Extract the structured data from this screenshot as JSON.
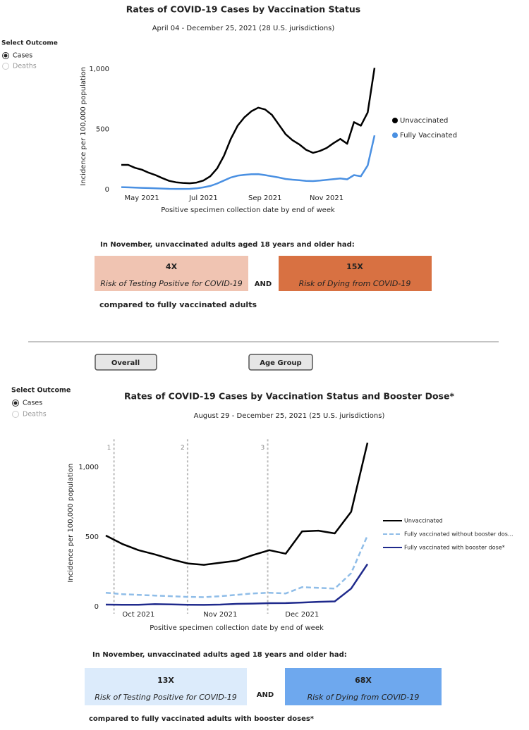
{
  "chart_data": [
    {
      "type": "line",
      "title": "Rates of COVID-19 Cases by Vaccination Status",
      "subtitle": "April 04 - December 25, 2021 (28 U.S. jurisdictions)",
      "y_label": "Incidence per 100,000 population",
      "x_label": "Positive specimen collection date by end of week",
      "categories": [
        null,
        null,
        null,
        "May 2021",
        null,
        null,
        null,
        null,
        null,
        null,
        null,
        null,
        "Jul 2021",
        null,
        null,
        null,
        null,
        null,
        null,
        null,
        null,
        "Sep 2021",
        null,
        null,
        null,
        null,
        null,
        null,
        null,
        null,
        "Nov 2021",
        null,
        null,
        null,
        null,
        null,
        null,
        null
      ],
      "series": [
        {
          "name": "Unvaccinated",
          "color": "#000000",
          "values": [
            205,
            205,
            180,
            165,
            140,
            120,
            95,
            72,
            60,
            55,
            52,
            58,
            75,
            110,
            175,
            280,
            420,
            530,
            600,
            650,
            680,
            665,
            620,
            540,
            460,
            410,
            375,
            330,
            305,
            320,
            345,
            385,
            420,
            380,
            560,
            530,
            640,
            1010
          ]
        },
        {
          "name": "Fully Vaccinated",
          "color": "#4a90e2",
          "values": [
            20,
            18,
            16,
            14,
            12,
            10,
            8,
            6,
            5,
            5,
            6,
            10,
            18,
            30,
            50,
            75,
            100,
            115,
            122,
            127,
            128,
            120,
            110,
            100,
            88,
            82,
            78,
            72,
            70,
            74,
            80,
            86,
            92,
            85,
            120,
            110,
            200,
            450
          ]
        }
      ],
      "ylim": [
        0,
        1050
      ],
      "yticks": [
        0,
        500,
        {
          "value": 1000,
          "label": "1,000"
        }
      ],
      "legend": "right"
    },
    {
      "type": "line",
      "title": "Rates of COVID-19 Cases by Vaccination Status and Booster Dose*",
      "subtitle": "August 29 - December 25, 2021 (25 U.S. jurisdictions)",
      "y_label": "Incidence per 100,000 population",
      "x_label": "Positive specimen collection date by end of week",
      "categories": [
        null,
        null,
        "Oct 2021",
        null,
        null,
        null,
        null,
        "Nov 2021",
        null,
        null,
        null,
        null,
        "Dec 2021",
        null,
        null,
        null,
        null
      ],
      "series": [
        {
          "name": "Unvaccinated",
          "color": "#000000",
          "values": [
            510,
            450,
            405,
            375,
            340,
            310,
            300,
            315,
            330,
            370,
            405,
            380,
            540,
            545,
            525,
            680,
            1175
          ]
        },
        {
          "name": "Fully vaccinated without booster dos...",
          "color": "#8fbde8",
          "dash": true,
          "values": [
            100,
            90,
            85,
            80,
            75,
            70,
            68,
            75,
            85,
            95,
            100,
            95,
            140,
            135,
            130,
            240,
            510
          ]
        },
        {
          "name": "Fully vaccinated with booster dose*",
          "color": "#1f2a8c",
          "values": [
            15,
            14,
            14,
            18,
            16,
            14,
            13,
            15,
            20,
            22,
            25,
            26,
            30,
            35,
            38,
            130,
            305
          ]
        }
      ],
      "reference_lines": [
        {
          "label": "1",
          "x": 0.5
        },
        {
          "label": "2",
          "x": 5
        },
        {
          "label": "3",
          "x": 9.9
        }
      ],
      "ylim": [
        0,
        1200
      ],
      "yticks": [
        0,
        500,
        {
          "value": 1000,
          "label": "1,000"
        }
      ],
      "legend": "right"
    }
  ],
  "panels": [
    {
      "outcome": {
        "title": "Select Outcome",
        "options": [
          "Cases",
          "Deaths"
        ]
      },
      "heading": "In November, unvaccinated adults aged 18 years and older had:",
      "boxes": [
        {
          "value": "4X",
          "label": "Risk of Testing Positive for COVID-19"
        },
        {
          "value": "15X",
          "label": "Risk of Dying from COVID-19"
        }
      ],
      "joiner": "AND",
      "footer": "compared to fully vaccinated adults"
    },
    {
      "outcome": {
        "title": "Select Outcome",
        "options": [
          "Cases",
          "Deaths"
        ]
      },
      "heading": "In November, unvaccinated adults aged 18 years and older had:",
      "boxes": [
        {
          "value": "13X",
          "label": "Risk of Testing Positive for COVID-19"
        },
        {
          "value": "68X",
          "label": "Risk of Dying from COVID-19"
        }
      ],
      "joiner": "AND",
      "footer": "compared to fully vaccinated adults with booster doses*"
    }
  ],
  "buttons": [
    "Overall",
    "Age Group"
  ]
}
